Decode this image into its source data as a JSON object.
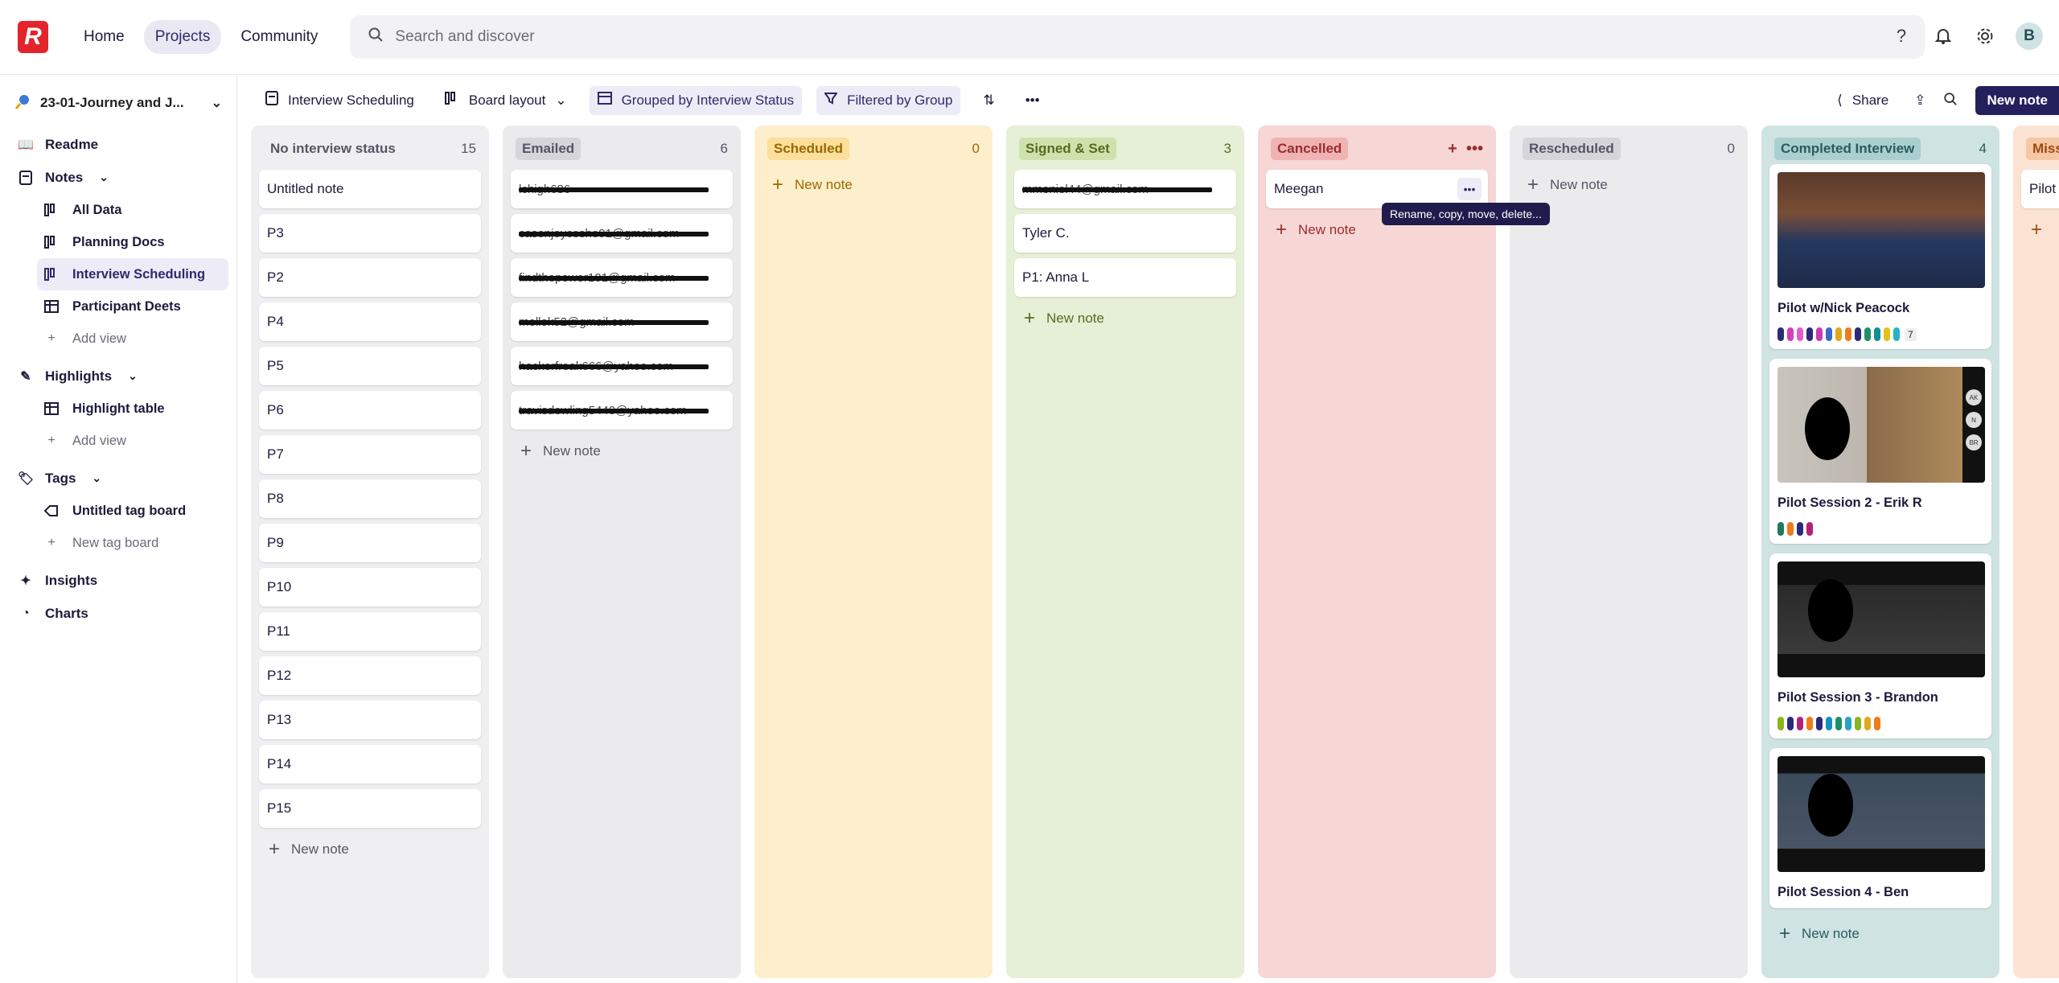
{
  "nav": {
    "logo": "R",
    "home": "Home",
    "projects": "Projects",
    "community": "Community"
  },
  "search": {
    "placeholder": "Search and discover"
  },
  "user": {
    "initial": "B"
  },
  "sidebar": {
    "project_name": "23-01-Journey and J...",
    "readme": "Readme",
    "notes": "Notes",
    "notes_views": [
      "All Data",
      "Planning Docs",
      "Interview Scheduling",
      "Participant Deets"
    ],
    "add_view": "Add view",
    "highlights": "Highlights",
    "highlight_table": "Highlight table",
    "add_view_2": "Add view",
    "tags": "Tags",
    "untitled_tag_board": "Untitled tag board",
    "new_tag_board": "New tag board",
    "insights": "Insights",
    "charts": "Charts"
  },
  "toolbar": {
    "view_name": "Interview Scheduling",
    "layout": "Board layout",
    "grouped": "Grouped by Interview Status",
    "filtered": "Filtered by Group",
    "share": "Share",
    "new_note": "New note"
  },
  "columns": [
    {
      "name": "No interview status",
      "count": "15",
      "bg": "#efeff1",
      "badge_bg": "transparent",
      "badge_fg": "#555566",
      "cards": [
        "Untitled note",
        "P3",
        "P2",
        "P4",
        "P5",
        "P6",
        "P7",
        "P8",
        "P9",
        "P10",
        "P11",
        "P12",
        "P13",
        "P14",
        "P15"
      ],
      "new_note": "New note"
    },
    {
      "name": "Emailed",
      "count": "6",
      "bg": "#ebebed",
      "badge_bg": "#d6d6da",
      "badge_fg": "#555566",
      "cards": [
        "lchigh686",
        "casonjoyceshe91@gmail.com",
        "findthepower101@gmail.com",
        "mellok52@gmail.com",
        "hackerfreak666@yahoo.com",
        "travisdewling5440@yahoo.com"
      ],
      "new_note": "New note"
    },
    {
      "name": "Scheduled",
      "count": "0",
      "bg": "#fdefcc",
      "badge_bg": "#fbdf9a",
      "badge_fg": "#9a6a00",
      "cards": [],
      "new_note": "New note"
    },
    {
      "name": "Signed & Set",
      "count": "3",
      "bg": "#e6f0d6",
      "badge_bg": "#cfe2ae",
      "badge_fg": "#556b1f",
      "cards": [
        "mmeniel44@gmail.com",
        "Tyler C.",
        "P1: Anna L"
      ],
      "new_note": "New note"
    },
    {
      "name": "Cancelled",
      "count": "",
      "bg": "#f7d6d6",
      "badge_bg": "#f0b3b3",
      "badge_fg": "#9b2d2d",
      "cards": [
        "Meegan"
      ],
      "new_note": "New note"
    },
    {
      "name": "Rescheduled",
      "count": "0",
      "bg": "#ebebed",
      "badge_bg": "#d6d6da",
      "badge_fg": "#555566",
      "cards": [],
      "new_note": "New note"
    },
    {
      "name": "Completed Interview",
      "count": "4",
      "bg": "#cfe3e3",
      "badge_bg": "#a9cfcf",
      "badge_fg": "#2b5b5e",
      "cards": [],
      "new_note": "New note"
    },
    {
      "name": "Miss",
      "count": "",
      "bg": "#fbe3d3",
      "badge_bg": "#f6c7a5",
      "badge_fg": "#9a4a12",
      "cards": [
        "Pilot"
      ],
      "new_note": ""
    }
  ],
  "completed_cards": [
    {
      "title": "Pilot w/Nick Peacock",
      "tag_count": "7"
    },
    {
      "title": "Pilot Session 2 - Erik R",
      "tag_count": ""
    },
    {
      "title": "Pilot Session 3 - Brandon",
      "tag_count": ""
    },
    {
      "title": "Pilot Session 4 - Ben",
      "tag_count": ""
    }
  ],
  "tooltip": "Rename, copy, move, delete...",
  "participant_initials": [
    "AK",
    "N",
    "BR"
  ],
  "colors": {
    "accent": "#24205e",
    "brand_red": "#e3242b"
  }
}
